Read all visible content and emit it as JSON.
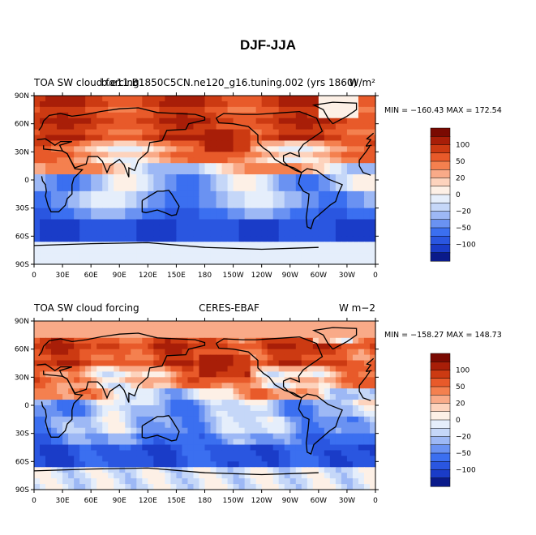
{
  "figure_title": "DJF-JJA",
  "colors": {
    "palette": [
      "#0a1a8a",
      "#1a3cc8",
      "#2a56e0",
      "#3b6ff0",
      "#6a92f2",
      "#9db8f5",
      "#c5d7f8",
      "#e5eefb",
      "#fdf0e6",
      "#fdd3bd",
      "#f9aa88",
      "#f4804f",
      "#e85a2a",
      "#cc3a12",
      "#a81e08",
      "#7a0a02"
    ]
  },
  "chart_data": [
    {
      "type": "heatmap",
      "title_left": "TOA SW cloud forcing",
      "title_center": "b.e11.B1850C5CN.ne120_g16.tuning.002 (yrs 1860)",
      "title_right": "W/m²",
      "stats": "MIN = −160.43  MAX = 172.54",
      "x_tick_labels": [
        "0",
        "30E",
        "60E",
        "90E",
        "120E",
        "150E",
        "180",
        "150W",
        "120W",
        "90W",
        "60W",
        "30W",
        "0"
      ],
      "y_tick_labels": [
        "90N",
        "60N",
        "30N",
        "0",
        "30S",
        "60S",
        "90S"
      ],
      "colorbar_levels": [
        -100,
        -50,
        -20,
        0,
        20,
        50,
        100
      ],
      "colorbar_labels": [
        "100",
        "50",
        "20",
        "0",
        "−20",
        "−50",
        "−100"
      ],
      "xlim": [
        0,
        360
      ],
      "ylim": [
        -90,
        90
      ],
      "value_range": [
        -160.43,
        172.54
      ]
    },
    {
      "type": "heatmap",
      "title_left": "TOA SW cloud forcing",
      "title_center": "CERES-EBAF",
      "title_right": "W m−2",
      "stats": "MIN = −158.27  MAX = 148.73",
      "x_tick_labels": [
        "0",
        "30E",
        "60E",
        "90E",
        "120E",
        "150E",
        "180",
        "150W",
        "120W",
        "90W",
        "60W",
        "30W",
        "0"
      ],
      "y_tick_labels": [
        "90N",
        "60N",
        "30N",
        "0",
        "30S",
        "60S",
        "90S"
      ],
      "colorbar_levels": [
        -100,
        -50,
        -20,
        0,
        20,
        50,
        100
      ],
      "colorbar_labels": [
        "100",
        "50",
        "20",
        "0",
        "−20",
        "−50",
        "−100"
      ],
      "xlim": [
        0,
        360
      ],
      "ylim": [
        -90,
        90
      ],
      "value_range": [
        -158.27,
        148.73
      ]
    }
  ]
}
